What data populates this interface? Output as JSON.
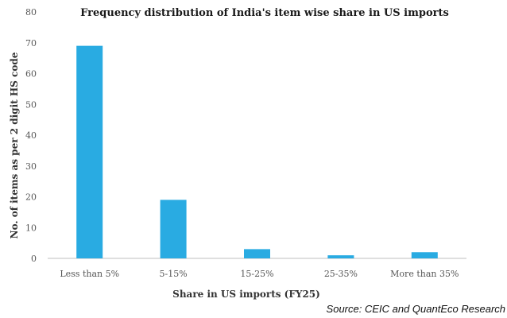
{
  "chart_data": {
    "type": "bar",
    "title": "Frequency distribution of India's item wise share in US imports",
    "xlabel": "Share in US imports (FY25)",
    "ylabel": "No. of items as per 2 digit HS code",
    "categories": [
      "Less than 5%",
      "5-15%",
      "15-25%",
      "25-35%",
      "More than 35%"
    ],
    "values": [
      69,
      19,
      3,
      1,
      2
    ],
    "ylim": [
      0,
      80
    ],
    "yticks": [
      "0",
      "10",
      "20",
      "30",
      "40",
      "50",
      "60",
      "70",
      "80"
    ],
    "grid": false,
    "legend": "none",
    "bar_color": "#29abe2",
    "source": "Source: CEIC and QuantEco Research"
  }
}
